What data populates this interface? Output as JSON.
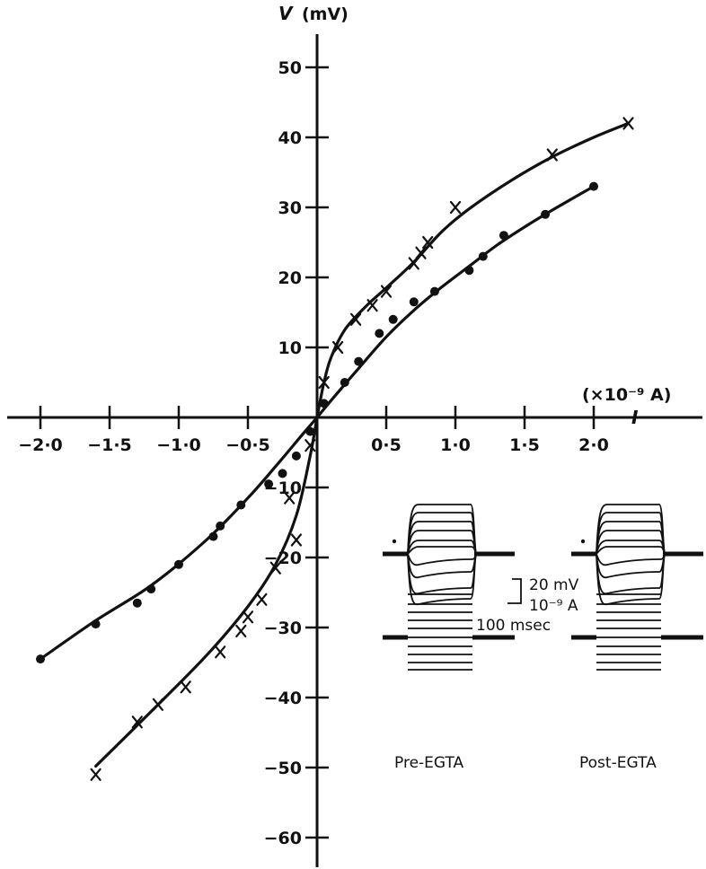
{
  "chart_data": {
    "type": "scatter",
    "title": "",
    "xlabel": "I",
    "x_unit": "(×10⁻⁹ A)",
    "ylabel": "V",
    "y_unit": "(mV)",
    "xlim": [
      -2.2,
      2.2
    ],
    "ylim": [
      -64,
      55
    ],
    "x_ticks": [
      -2.0,
      -1.5,
      -1.0,
      -0.5,
      0.5,
      1.0,
      1.5,
      2.0
    ],
    "x_tick_labels": [
      "−2·0",
      "−1·5",
      "−1·0",
      "−0·5",
      "0·5",
      "1·0",
      "1·5",
      "2·0"
    ],
    "y_ticks": [
      50,
      40,
      30,
      20,
      10,
      -10,
      -20,
      -30,
      -40,
      -50,
      -60
    ],
    "y_tick_labels": [
      "50",
      "40",
      "30",
      "20",
      "10",
      "−10",
      "−20",
      "−30",
      "−40",
      "−50",
      "−60"
    ],
    "series": [
      {
        "marker": "x",
        "points": [
          [
            -1.6,
            -51
          ],
          [
            -1.3,
            -43.5
          ],
          [
            -1.15,
            -41
          ],
          [
            -0.95,
            -38.5
          ],
          [
            -0.7,
            -33.5
          ],
          [
            -0.55,
            -30.5
          ],
          [
            -0.5,
            -28.5
          ],
          [
            -0.4,
            -26
          ],
          [
            -0.3,
            -21.5
          ],
          [
            -0.15,
            -17.5
          ],
          [
            -0.2,
            -11.5
          ],
          [
            -0.05,
            -4
          ],
          [
            0.05,
            5
          ],
          [
            0.15,
            10
          ],
          [
            0.28,
            14
          ],
          [
            0.4,
            16
          ],
          [
            0.5,
            18
          ],
          [
            0.7,
            22
          ],
          [
            0.75,
            23.5
          ],
          [
            0.8,
            25
          ],
          [
            1.0,
            30
          ],
          [
            1.7,
            37.5
          ],
          [
            2.25,
            42
          ]
        ],
        "curve": [
          [
            -1.6,
            -49.8
          ],
          [
            -1.2,
            -42
          ],
          [
            -0.8,
            -34
          ],
          [
            -0.5,
            -27
          ],
          [
            -0.3,
            -21
          ],
          [
            -0.15,
            -14
          ],
          [
            -0.05,
            -5.5
          ],
          [
            0,
            0
          ],
          [
            0.05,
            5
          ],
          [
            0.1,
            8.5
          ],
          [
            0.2,
            12.5
          ],
          [
            0.35,
            15.8
          ],
          [
            0.5,
            18.5
          ],
          [
            0.7,
            22.2
          ],
          [
            0.9,
            26.5
          ],
          [
            1.1,
            29.8
          ],
          [
            1.4,
            33.8
          ],
          [
            1.7,
            37.2
          ],
          [
            2.0,
            40
          ],
          [
            2.25,
            42
          ]
        ]
      },
      {
        "marker": "dot",
        "points": [
          [
            -2.0,
            -34.5
          ],
          [
            -1.6,
            -29.5
          ],
          [
            -1.3,
            -26.5
          ],
          [
            -1.2,
            -24.5
          ],
          [
            -1.0,
            -21
          ],
          [
            -0.75,
            -17
          ],
          [
            -0.7,
            -15.5
          ],
          [
            -0.55,
            -12.5
          ],
          [
            -0.35,
            -9.5
          ],
          [
            -0.25,
            -8
          ],
          [
            -0.15,
            -5.5
          ],
          [
            -0.05,
            -2
          ],
          [
            0.05,
            2
          ],
          [
            0.2,
            5
          ],
          [
            0.3,
            8
          ],
          [
            0.45,
            12
          ],
          [
            0.55,
            14
          ],
          [
            0.7,
            16.5
          ],
          [
            0.85,
            18
          ],
          [
            1.1,
            21
          ],
          [
            1.2,
            23
          ],
          [
            1.35,
            26
          ],
          [
            1.65,
            29
          ],
          [
            2.0,
            33
          ]
        ],
        "curve": [
          [
            -2.0,
            -34.5
          ],
          [
            -1.6,
            -29
          ],
          [
            -1.2,
            -24
          ],
          [
            -0.8,
            -17.5
          ],
          [
            -0.5,
            -11.5
          ],
          [
            -0.3,
            -7
          ],
          [
            -0.1,
            -2.3
          ],
          [
            0,
            0
          ],
          [
            0.1,
            2.4
          ],
          [
            0.3,
            7
          ],
          [
            0.5,
            11.5
          ],
          [
            0.7,
            15.3
          ],
          [
            0.9,
            18.6
          ],
          [
            1.1,
            21.6
          ],
          [
            1.3,
            24.6
          ],
          [
            1.5,
            27.2
          ],
          [
            1.7,
            29.6
          ],
          [
            2.0,
            33
          ]
        ]
      }
    ]
  },
  "inset": {
    "scale_voltage": "20 mV",
    "scale_current": "10⁻⁹ A",
    "scale_time": "100 msec",
    "left_label": "Pre-EGTA",
    "right_label": "Post-EGTA"
  }
}
